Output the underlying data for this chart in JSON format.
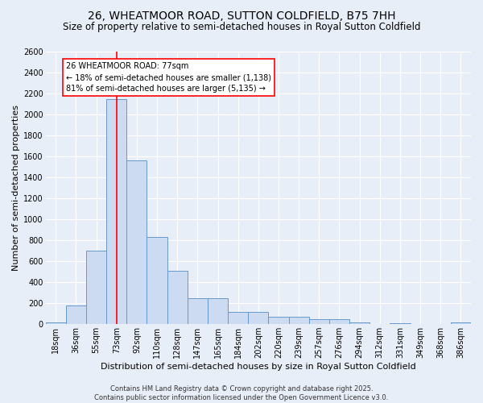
{
  "title": "26, WHEATMOOR ROAD, SUTTON COLDFIELD, B75 7HH",
  "subtitle": "Size of property relative to semi-detached houses in Royal Sutton Coldfield",
  "xlabel": "Distribution of semi-detached houses by size in Royal Sutton Coldfield",
  "ylabel": "Number of semi-detached properties",
  "categories": [
    "18sqm",
    "36sqm",
    "55sqm",
    "73sqm",
    "92sqm",
    "110sqm",
    "128sqm",
    "147sqm",
    "165sqm",
    "184sqm",
    "202sqm",
    "220sqm",
    "239sqm",
    "257sqm",
    "276sqm",
    "294sqm",
    "312sqm",
    "331sqm",
    "349sqm",
    "368sqm",
    "386sqm"
  ],
  "values": [
    15,
    175,
    700,
    2150,
    1560,
    830,
    510,
    250,
    250,
    120,
    120,
    70,
    70,
    50,
    50,
    20,
    5,
    10,
    5,
    5,
    20
  ],
  "bar_color": "#ccdaf2",
  "bar_edge_color": "#6699cc",
  "red_line_x": 3,
  "annotation_title": "26 WHEATMOOR ROAD: 77sqm",
  "annotation_line1": "← 18% of semi-detached houses are smaller (1,138)",
  "annotation_line2": "81% of semi-detached houses are larger (5,135) →",
  "footer_line1": "Contains HM Land Registry data © Crown copyright and database right 2025.",
  "footer_line2": "Contains public sector information licensed under the Open Government Licence v3.0.",
  "ylim": [
    0,
    2600
  ],
  "background_color": "#e8eef8",
  "plot_bg_color": "#e8eef8",
  "grid_color": "#ffffff",
  "title_fontsize": 10,
  "subtitle_fontsize": 8.5,
  "axis_label_fontsize": 8,
  "tick_fontsize": 7,
  "annotation_fontsize": 7,
  "footer_fontsize": 6
}
